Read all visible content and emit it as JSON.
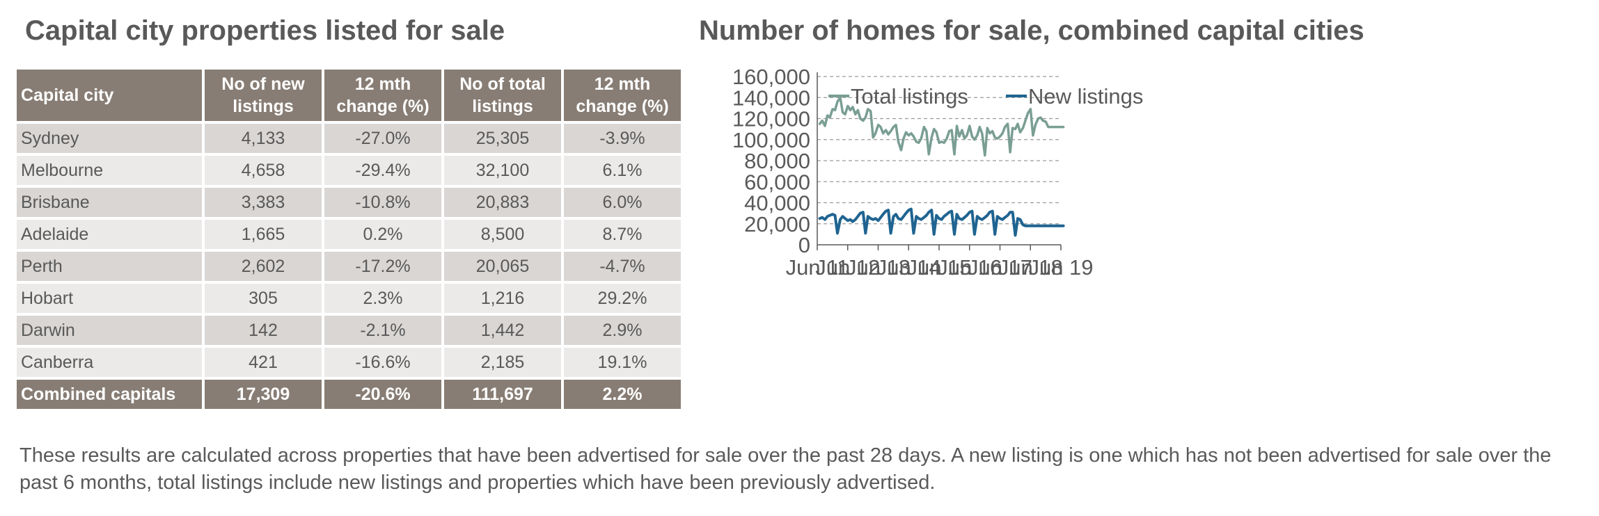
{
  "table": {
    "title": "Capital city properties listed for sale",
    "headers": [
      "Capital city",
      "No of new listings",
      "12 mth change (%)",
      "No of total listings",
      "12 mth change (%)"
    ],
    "rows": [
      [
        "Sydney",
        "4,133",
        "-27.0%",
        "25,305",
        "-3.9%"
      ],
      [
        "Melbourne",
        "4,658",
        "-29.4%",
        "32,100",
        "6.1%"
      ],
      [
        "Brisbane",
        "3,383",
        "-10.8%",
        "20,883",
        "6.0%"
      ],
      [
        "Adelaide",
        "1,665",
        "0.2%",
        "8,500",
        "8.7%"
      ],
      [
        "Perth",
        "2,602",
        "-17.2%",
        "20,065",
        "-4.7%"
      ],
      [
        "Hobart",
        "305",
        "2.3%",
        "1,216",
        "29.2%"
      ],
      [
        "Darwin",
        "142",
        "-2.1%",
        "1,442",
        "2.9%"
      ],
      [
        "Canberra",
        "421",
        "-16.6%",
        "2,185",
        "19.1%"
      ]
    ],
    "total": [
      "Combined capitals",
      "17,309",
      "-20.6%",
      "111,697",
      "2.2%"
    ]
  },
  "chart_data": {
    "type": "line",
    "title": "Number of homes for sale, combined capital cities",
    "xlabel": "",
    "ylabel": "",
    "ylim": [
      0,
      160000
    ],
    "yticks": [
      "0",
      "20,000",
      "40,000",
      "60,000",
      "80,000",
      "100,000",
      "120,000",
      "140,000",
      "160,000"
    ],
    "xticks": [
      "Jun 11",
      "Jun 12",
      "Jun 13",
      "Jun 14",
      "Jun 15",
      "Jun 16",
      "Jun 17",
      "Jun 18",
      "Jun 19"
    ],
    "grid": "horizontal dashed",
    "legend": "top-left",
    "x": [
      2011.5,
      2011.58,
      2011.67,
      2011.75,
      2011.83,
      2011.92,
      2012.0,
      2012.08,
      2012.17,
      2012.25,
      2012.33,
      2012.42,
      2012.5,
      2012.58,
      2012.67,
      2012.75,
      2012.83,
      2012.92,
      2013.0,
      2013.08,
      2013.17,
      2013.25,
      2013.33,
      2013.42,
      2013.5,
      2013.58,
      2013.67,
      2013.75,
      2013.83,
      2013.92,
      2014.0,
      2014.08,
      2014.17,
      2014.25,
      2014.33,
      2014.42,
      2014.5,
      2014.58,
      2014.67,
      2014.75,
      2014.83,
      2014.92,
      2015.0,
      2015.08,
      2015.17,
      2015.25,
      2015.33,
      2015.42,
      2015.5,
      2015.58,
      2015.67,
      2015.75,
      2015.83,
      2015.92,
      2016.0,
      2016.08,
      2016.17,
      2016.25,
      2016.33,
      2016.42,
      2016.5,
      2016.58,
      2016.67,
      2016.75,
      2016.83,
      2016.92,
      2017.0,
      2017.08,
      2017.17,
      2017.25,
      2017.33,
      2017.42,
      2017.5,
      2017.58,
      2017.67,
      2017.75,
      2017.83,
      2017.92,
      2018.0,
      2018.08,
      2018.17,
      2018.25,
      2018.33,
      2018.42,
      2018.5,
      2018.58,
      2018.67,
      2018.75,
      2018.83,
      2018.92,
      2019.0,
      2019.08,
      2019.17,
      2019.25,
      2019.33,
      2019.42,
      2019.5
    ],
    "series": [
      {
        "name": "Total listings",
        "color": "#7a9e94",
        "values": [
          115000,
          118000,
          113000,
          123000,
          121000,
          129000,
          128000,
          136000,
          140000,
          126000,
          124000,
          132000,
          128000,
          131000,
          124000,
          128000,
          120000,
          118000,
          121000,
          129000,
          127000,
          102000,
          106000,
          114000,
          112000,
          106000,
          109000,
          105000,
          108000,
          112000,
          114000,
          98000,
          90000,
          101000,
          107000,
          104000,
          106000,
          103000,
          98000,
          97000,
          101000,
          112000,
          108000,
          86000,
          102000,
          110000,
          107000,
          97000,
          98000,
          97000,
          101000,
          108000,
          109000,
          86000,
          113000,
          103000,
          109000,
          101000,
          104000,
          113000,
          103000,
          100000,
          104000,
          112000,
          106000,
          85000,
          111000,
          106000,
          108000,
          102000,
          101000,
          103000,
          106000,
          112000,
          115000,
          88000,
          111000,
          110000,
          115000,
          107000,
          111000,
          118000,
          125000,
          129000,
          104000,
          114000,
          120000,
          121000,
          118000,
          117000,
          112000,
          112000,
          112000,
          112000,
          112000,
          112000,
          112000
        ]
      },
      {
        "name": "New listings",
        "color": "#1f6491",
        "values": [
          25000,
          26000,
          24000,
          27000,
          28000,
          29000,
          28000,
          11000,
          24000,
          27000,
          25000,
          23000,
          24000,
          22000,
          24000,
          27000,
          30000,
          31000,
          11000,
          27000,
          25000,
          24000,
          25000,
          23000,
          26000,
          29000,
          32000,
          33000,
          11000,
          27000,
          29000,
          25000,
          24000,
          27000,
          30000,
          33000,
          34000,
          11000,
          27000,
          25000,
          24000,
          26000,
          28000,
          31000,
          33000,
          10000,
          28000,
          25000,
          24000,
          27000,
          29000,
          31000,
          32000,
          10000,
          29000,
          25000,
          24000,
          26000,
          28000,
          31000,
          32000,
          10000,
          27000,
          25000,
          24000,
          26000,
          28000,
          31000,
          32000,
          10000,
          27000,
          25000,
          24000,
          26000,
          28000,
          31000,
          31000,
          9000,
          25000,
          24000,
          19000,
          18000,
          18000,
          18000,
          18000,
          18000,
          18000,
          18000,
          18000,
          18000,
          18000,
          18000,
          18000,
          18000,
          18000,
          18000,
          18000
        ]
      }
    ]
  },
  "footnote": "These results are calculated across properties that have been advertised for sale over the past 28 days.  A new listing is one which has not been advertised for sale over the past 6 months, total listings include new listings and properties which have been previously advertised."
}
